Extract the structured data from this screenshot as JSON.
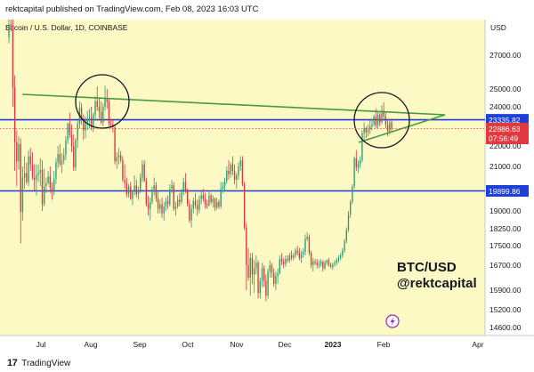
{
  "header": {
    "publish_line": "rektcapital published on TradingView.com, Feb 08, 2023 16:03 UTC"
  },
  "footer": {
    "logo": "17",
    "brand": "TradingView"
  },
  "chart_data": {
    "type": "candlestick",
    "title": "Bitcoin / U.S. Dollar, 1D, COINBASE",
    "currency_label": "USD",
    "ylim": [
      14300,
      28500
    ],
    "y_ticks": [
      "27000.00",
      "25000.00",
      "24000.00",
      "23000.00",
      "22000.00",
      "21000.00",
      "20000.00",
      "19000.00",
      "18250.00",
      "17500.00",
      "16700.00",
      "15900.00",
      "15200.00",
      "14600.00"
    ],
    "x_ticks": [
      "Jul",
      "Aug",
      "Sep",
      "Oct",
      "Nov",
      "Dec",
      "2023",
      "Feb",
      "Apr"
    ],
    "levels": [
      {
        "value": 23335.82,
        "label": "23335.82",
        "color": "#1e40d8"
      },
      {
        "value": 19899.86,
        "label": "19899.86",
        "color": "#1e40d8"
      }
    ],
    "last_price": {
      "value": 22886.63,
      "label": "22886.63",
      "countdown": "07:56:49",
      "color": "#e0393e"
    },
    "annotation": {
      "line1": "BTC/USD",
      "line2": "@rektcapital"
    },
    "colors": {
      "up": "#2f9a70",
      "down": "#d9363e",
      "background": "#fcf9c5",
      "trendline": "#4a9c3a",
      "circle": "#131722"
    },
    "candles": [
      [
        28500,
        30000,
        28000,
        29600
      ],
      [
        29600,
        31300,
        29000,
        29400
      ],
      [
        29400,
        30000,
        24000,
        25100
      ],
      [
        25100,
        25800,
        20800,
        22200
      ],
      [
        22200,
        22800,
        20100,
        21250
      ],
      [
        21250,
        22500,
        20850,
        22100
      ],
      [
        22100,
        22400,
        17600,
        18950
      ],
      [
        18950,
        21000,
        18600,
        20500
      ],
      [
        20500,
        21500,
        20000,
        20700
      ],
      [
        20700,
        21200,
        20200,
        20300
      ],
      [
        20300,
        21800,
        20100,
        21500
      ],
      [
        21500,
        21900,
        20800,
        21100
      ],
      [
        21100,
        21700,
        20400,
        20500
      ],
      [
        20500,
        21100,
        19900,
        20400
      ],
      [
        20400,
        21100,
        19700,
        20600
      ],
      [
        20600,
        21100,
        20300,
        20700
      ],
      [
        20700,
        21400,
        20100,
        20850
      ],
      [
        20850,
        21300,
        19000,
        19300
      ],
      [
        19300,
        20900,
        19200,
        20100
      ],
      [
        20100,
        20500,
        19800,
        20250
      ],
      [
        20250,
        20800,
        20200,
        20550
      ],
      [
        20550,
        21000,
        19800,
        20050
      ],
      [
        20050,
        20300,
        19500,
        19950
      ],
      [
        19950,
        20800,
        19700,
        20450
      ],
      [
        20450,
        21400,
        20200,
        21200
      ],
      [
        21200,
        22000,
        20900,
        21600
      ],
      [
        21600,
        22100,
        21000,
        21100
      ],
      [
        21100,
        21650,
        20700,
        21300
      ],
      [
        21300,
        21900,
        21100,
        21550
      ],
      [
        21550,
        22500,
        21300,
        22300
      ],
      [
        22300,
        23200,
        22100,
        23150
      ],
      [
        23150,
        23700,
        22400,
        22550
      ],
      [
        22550,
        23100,
        21700,
        22000
      ],
      [
        22000,
        22600,
        20800,
        20950
      ],
      [
        20950,
        22400,
        20800,
        22300
      ],
      [
        22300,
        23300,
        21900,
        23150
      ],
      [
        23150,
        24300,
        22900,
        23950
      ],
      [
        23950,
        24200,
        23100,
        23300
      ],
      [
        23300,
        23600,
        22300,
        22800
      ],
      [
        22800,
        23500,
        22400,
        23200
      ],
      [
        23200,
        23800,
        22800,
        23300
      ],
      [
        23300,
        23900,
        22900,
        23450
      ],
      [
        23450,
        24000,
        22800,
        22950
      ],
      [
        22950,
        23700,
        22700,
        23600
      ],
      [
        23600,
        24600,
        23300,
        24300
      ],
      [
        24300,
        25150,
        23800,
        24000
      ],
      [
        24000,
        24500,
        23400,
        23750
      ],
      [
        23750,
        24300,
        23100,
        23200
      ],
      [
        23200,
        24200,
        23000,
        24000
      ],
      [
        24000,
        25200,
        23800,
        24500
      ],
      [
        24500,
        25000,
        23900,
        24300
      ],
      [
        24300,
        24500,
        23000,
        23150
      ],
      [
        23150,
        23400,
        22900,
        23100
      ],
      [
        23100,
        23300,
        22700,
        22950
      ],
      [
        22950,
        23100,
        21100,
        21250
      ],
      [
        21250,
        21700,
        20900,
        21450
      ],
      [
        21450,
        21900,
        21100,
        21550
      ],
      [
        21550,
        21750,
        21200,
        21300
      ],
      [
        21300,
        21500,
        20300,
        20400
      ],
      [
        20400,
        21100,
        20000,
        20250
      ],
      [
        20250,
        20500,
        19600,
        19750
      ],
      [
        19750,
        20200,
        19600,
        20100
      ],
      [
        20100,
        20300,
        19500,
        19550
      ],
      [
        19550,
        19900,
        19250,
        19850
      ],
      [
        19850,
        20600,
        19700,
        20150
      ],
      [
        20150,
        20400,
        19600,
        19750
      ],
      [
        19750,
        20100,
        19500,
        19900
      ],
      [
        19900,
        20700,
        19800,
        20500
      ],
      [
        20500,
        21300,
        20300,
        21100
      ],
      [
        21100,
        21300,
        20300,
        20350
      ],
      [
        20350,
        20500,
        19200,
        19300
      ],
      [
        19300,
        19700,
        18800,
        19100
      ],
      [
        19100,
        19600,
        18600,
        19400
      ],
      [
        19400,
        20100,
        19300,
        19950
      ],
      [
        19950,
        20500,
        19700,
        20150
      ],
      [
        20150,
        20300,
        19400,
        19550
      ],
      [
        19550,
        19900,
        18900,
        19100
      ],
      [
        19100,
        19500,
        18900,
        19300
      ],
      [
        19300,
        19600,
        18700,
        18900
      ],
      [
        18900,
        19400,
        18600,
        19200
      ],
      [
        19200,
        19600,
        19000,
        19450
      ],
      [
        19450,
        19700,
        19100,
        19300
      ],
      [
        19300,
        20200,
        19200,
        20000
      ],
      [
        20000,
        20400,
        19800,
        20150
      ],
      [
        20150,
        20300,
        19000,
        19100
      ],
      [
        19100,
        19400,
        18800,
        19200
      ],
      [
        19200,
        19700,
        19100,
        19500
      ],
      [
        19500,
        19800,
        19200,
        19400
      ],
      [
        19400,
        20000,
        19300,
        19850
      ],
      [
        19850,
        20500,
        19700,
        20300
      ],
      [
        20300,
        20700,
        19800,
        19950
      ],
      [
        19950,
        20000,
        19200,
        19300
      ],
      [
        19300,
        19500,
        18500,
        18600
      ],
      [
        18600,
        19300,
        18300,
        19100
      ],
      [
        19100,
        19600,
        18900,
        19450
      ],
      [
        19450,
        19800,
        19100,
        19250
      ],
      [
        19250,
        19500,
        18800,
        19050
      ],
      [
        19050,
        19700,
        18900,
        19500
      ],
      [
        19500,
        19900,
        19300,
        19700
      ],
      [
        19700,
        20000,
        19400,
        19550
      ],
      [
        19550,
        19800,
        19100,
        19300
      ],
      [
        19300,
        19500,
        19100,
        19250
      ],
      [
        19250,
        19900,
        19200,
        19700
      ],
      [
        19700,
        19800,
        19300,
        19400
      ],
      [
        19400,
        19700,
        19150,
        19550
      ],
      [
        19550,
        19600,
        19000,
        19150
      ],
      [
        19150,
        19600,
        19050,
        19400
      ],
      [
        19400,
        19500,
        19100,
        19200
      ],
      [
        19200,
        20300,
        19100,
        20000
      ],
      [
        20000,
        20300,
        19800,
        20100
      ],
      [
        20100,
        20500,
        19900,
        20350
      ],
      [
        20350,
        21000,
        20200,
        20800
      ],
      [
        20800,
        21300,
        20400,
        20650
      ],
      [
        20650,
        21200,
        20500,
        21100
      ],
      [
        21100,
        21500,
        20600,
        20800
      ],
      [
        20800,
        21100,
        20200,
        20400
      ],
      [
        20400,
        20700,
        20000,
        20600
      ],
      [
        20600,
        21200,
        20400,
        21000
      ],
      [
        21000,
        21500,
        20800,
        21300
      ],
      [
        21300,
        21500,
        20100,
        20200
      ],
      [
        20200,
        20300,
        18200,
        18300
      ],
      [
        18300,
        18500,
        15900,
        16700
      ],
      [
        16700,
        17400,
        16200,
        16300
      ],
      [
        16300,
        17200,
        15700,
        17000
      ],
      [
        17000,
        17200,
        16100,
        16400
      ],
      [
        16400,
        16900,
        15800,
        16600
      ],
      [
        16600,
        17100,
        16400,
        16800
      ],
      [
        16800,
        16900,
        15600,
        15800
      ],
      [
        15800,
        16300,
        15600,
        16200
      ],
      [
        16200,
        16800,
        16000,
        16600
      ],
      [
        16600,
        16700,
        16000,
        16200
      ],
      [
        16200,
        16400,
        15500,
        15700
      ],
      [
        15700,
        16600,
        15600,
        16500
      ],
      [
        16500,
        16900,
        16300,
        16700
      ],
      [
        16700,
        16800,
        16300,
        16450
      ],
      [
        16450,
        16600,
        16000,
        16100
      ],
      [
        16100,
        16500,
        15900,
        16350
      ],
      [
        16350,
        16600,
        16100,
        16450
      ],
      [
        16450,
        17100,
        16400,
        16950
      ],
      [
        16950,
        17200,
        16700,
        16850
      ],
      [
        16850,
        17000,
        16600,
        16750
      ],
      [
        16750,
        17100,
        16650,
        16950
      ],
      [
        16950,
        17100,
        16800,
        16900
      ],
      [
        16900,
        17200,
        16800,
        17100
      ],
      [
        17100,
        17300,
        16900,
        17000
      ],
      [
        17000,
        17200,
        16900,
        17100
      ],
      [
        17100,
        17400,
        17000,
        17300
      ],
      [
        17300,
        17500,
        17100,
        17200
      ],
      [
        17200,
        17400,
        16900,
        17000
      ],
      [
        17000,
        17300,
        16800,
        17150
      ],
      [
        17150,
        17400,
        17000,
        17250
      ],
      [
        17250,
        18000,
        17100,
        17800
      ],
      [
        17800,
        18100,
        17700,
        17900
      ],
      [
        17900,
        18000,
        17100,
        17200
      ],
      [
        17200,
        17300,
        16600,
        16700
      ],
      [
        16700,
        17000,
        16500,
        16850
      ],
      [
        16850,
        16950,
        16700,
        16800
      ],
      [
        16800,
        16950,
        16600,
        16700
      ],
      [
        16700,
        16900,
        16600,
        16750
      ],
      [
        16750,
        16950,
        16650,
        16850
      ],
      [
        16850,
        16900,
        16500,
        16600
      ],
      [
        16600,
        16900,
        16550,
        16800
      ],
      [
        16800,
        16950,
        16700,
        16900
      ],
      [
        16900,
        17000,
        16650,
        16700
      ],
      [
        16700,
        16800,
        16600,
        16650
      ],
      [
        16650,
        16800,
        16550,
        16750
      ],
      [
        16750,
        16900,
        16650,
        16800
      ],
      [
        16800,
        17000,
        16700,
        16900
      ],
      [
        16900,
        17100,
        16800,
        17000
      ],
      [
        17000,
        17200,
        16900,
        17100
      ],
      [
        17100,
        17400,
        17000,
        17300
      ],
      [
        17300,
        17800,
        17200,
        17700
      ],
      [
        17700,
        18300,
        17600,
        18200
      ],
      [
        18200,
        19000,
        18100,
        18850
      ],
      [
        18850,
        19500,
        18700,
        19400
      ],
      [
        19400,
        20200,
        19300,
        20100
      ],
      [
        20100,
        21500,
        20000,
        21400
      ],
      [
        21400,
        21800,
        20800,
        20950
      ],
      [
        20950,
        21300,
        20700,
        21100
      ],
      [
        21100,
        21500,
        20900,
        21300
      ],
      [
        21300,
        22800,
        21200,
        22650
      ],
      [
        22650,
        23200,
        22300,
        22900
      ],
      [
        22900,
        23000,
        22400,
        22700
      ],
      [
        22700,
        23100,
        22500,
        22850
      ],
      [
        22850,
        23300,
        22600,
        23000
      ],
      [
        23000,
        23400,
        22800,
        23100
      ],
      [
        23100,
        23600,
        23000,
        23500
      ],
      [
        23500,
        23900,
        22900,
        23050
      ],
      [
        23050,
        23800,
        22900,
        23600
      ],
      [
        23600,
        23700,
        23000,
        23200
      ],
      [
        23200,
        24100,
        23100,
        23800
      ],
      [
        23800,
        24250,
        23300,
        23500
      ],
      [
        23500,
        23700,
        22900,
        23100
      ],
      [
        23100,
        23300,
        22500,
        22750
      ],
      [
        22750,
        23400,
        22600,
        23200
      ],
      [
        23200,
        23400,
        22700,
        22886.63
      ]
    ]
  }
}
